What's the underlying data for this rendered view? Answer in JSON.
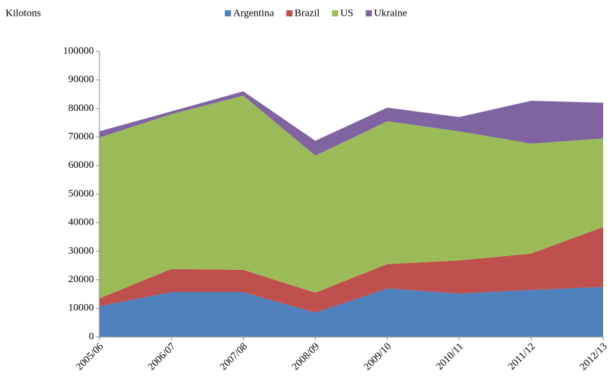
{
  "chart_data": {
    "type": "stacked_area",
    "y_label": "Kilotons",
    "categories": [
      "2005/06",
      "2006/07",
      "2007/08",
      "2008/09",
      "2009/10",
      "2010/11",
      "2011/12",
      "2012/13"
    ],
    "series": [
      {
        "name": "Argentina",
        "color": "#4f81bd",
        "values": [
          10800,
          15700,
          15700,
          8500,
          17000,
          15200,
          16500,
          17500
        ]
      },
      {
        "name": "Brazil",
        "color": "#c0504d",
        "values": [
          2700,
          8100,
          7800,
          7000,
          8500,
          11600,
          12700,
          21000
        ]
      },
      {
        "name": "US",
        "color": "#9bbb59",
        "values": [
          56300,
          54200,
          61000,
          48000,
          50000,
          45200,
          38500,
          31000
        ]
      },
      {
        "name": "Ukraine",
        "color": "#8064a2",
        "values": [
          2200,
          1000,
          1500,
          5200,
          4800,
          5000,
          15000,
          12500
        ]
      }
    ],
    "ylim": [
      0,
      100000
    ],
    "yticks": [
      0,
      10000,
      20000,
      30000,
      40000,
      50000,
      60000,
      70000,
      80000,
      90000,
      100000
    ],
    "legend": "top"
  }
}
